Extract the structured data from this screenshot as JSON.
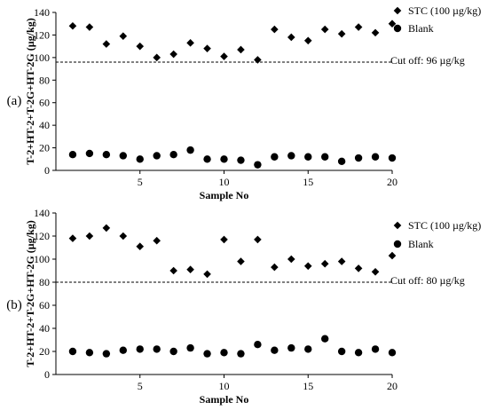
{
  "chart_data": [
    {
      "panel_label": "(a)",
      "type": "scatter",
      "title": "",
      "xlabel": "Sample No",
      "ylabel": "T-2+HT-2+T-2G+HT-2G (µg/kg)",
      "xlim": [
        0,
        20
      ],
      "ylim": [
        0,
        140
      ],
      "x_ticks": [
        "5",
        "10",
        "15",
        "20"
      ],
      "y_ticks": [
        "0",
        "20",
        "40",
        "60",
        "80",
        "100",
        "120",
        "140"
      ],
      "grid": false,
      "legend_position": "top-right",
      "series": [
        {
          "name": "STC (100 µg/kg)",
          "marker": "diamond",
          "x": [
            1,
            2,
            3,
            4,
            5,
            6,
            7,
            8,
            9,
            10,
            11,
            12,
            13,
            14,
            15,
            16,
            17,
            18,
            19,
            20
          ],
          "values": [
            128,
            127,
            112,
            119,
            110,
            100,
            103,
            113,
            108,
            101,
            107,
            98,
            125,
            118,
            115,
            125,
            121,
            127,
            122,
            130
          ]
        },
        {
          "name": "Blank",
          "marker": "circle",
          "x": [
            1,
            2,
            3,
            4,
            5,
            6,
            7,
            8,
            9,
            10,
            11,
            12,
            13,
            14,
            15,
            16,
            17,
            18,
            19,
            20
          ],
          "values": [
            14,
            15,
            14,
            13,
            10,
            13,
            14,
            18,
            10,
            10,
            9,
            5,
            12,
            13,
            12,
            12,
            8,
            11,
            12,
            11
          ]
        }
      ],
      "cutoff": {
        "value": 96,
        "label": "Cut off: 96 µg/kg"
      }
    },
    {
      "panel_label": "(b)",
      "type": "scatter",
      "title": "",
      "xlabel": "Sample No",
      "ylabel": "T-2+HT-2+T-2G+HT-2G (µg/kg)",
      "xlim": [
        0,
        20
      ],
      "ylim": [
        0,
        140
      ],
      "x_ticks": [
        "5",
        "10",
        "15",
        "20"
      ],
      "y_ticks": [
        "0",
        "20",
        "40",
        "60",
        "80",
        "100",
        "120",
        "140"
      ],
      "grid": false,
      "legend_position": "top-right",
      "series": [
        {
          "name": "STC (100 µg/kg)",
          "marker": "diamond",
          "x": [
            1,
            2,
            3,
            4,
            5,
            6,
            7,
            8,
            9,
            10,
            11,
            12,
            13,
            14,
            15,
            16,
            17,
            18,
            19,
            20
          ],
          "values": [
            118,
            120,
            127,
            120,
            111,
            116,
            90,
            91,
            87,
            117,
            98,
            117,
            93,
            100,
            94,
            96,
            98,
            92,
            89,
            103
          ]
        },
        {
          "name": "Blank",
          "marker": "circle",
          "x": [
            1,
            2,
            3,
            4,
            5,
            6,
            7,
            8,
            9,
            10,
            11,
            12,
            13,
            14,
            15,
            16,
            17,
            18,
            19,
            20
          ],
          "values": [
            20,
            19,
            18,
            21,
            22,
            22,
            20,
            23,
            18,
            19,
            18,
            26,
            21,
            23,
            22,
            31,
            20,
            19,
            22,
            19
          ]
        }
      ],
      "cutoff": {
        "value": 80,
        "label": "Cut off: 80 µg/kg"
      }
    }
  ]
}
